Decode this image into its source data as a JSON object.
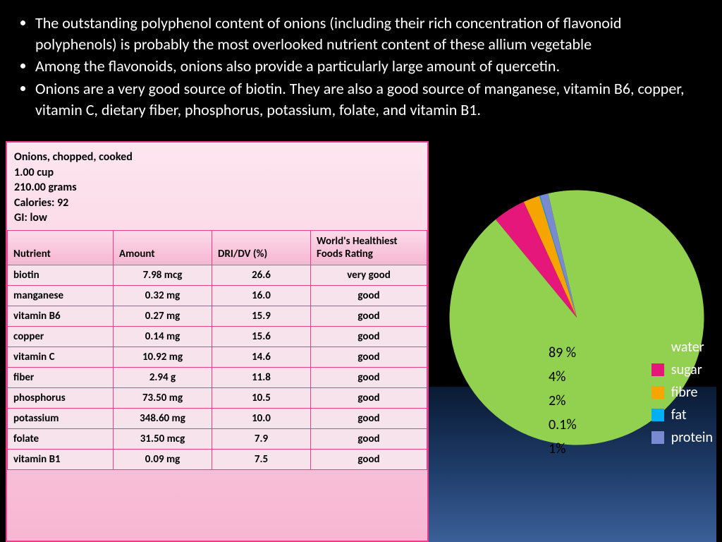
{
  "bullets": [
    "The outstanding polyphenol content of onions (including their rich concentration of flavonoid polyphenols) is probably the most overlooked nutrient content of these allium vegetable",
    " Among the flavonoids, onions also provide a particularly large amount of quercetin.",
    "Onions are a very good source of biotin. They are also a good source of manganese, vitamin B6, copper, vitamin C, dietary fiber, phosphorus, potassium, folate, and vitamin B1."
  ],
  "table": {
    "header_lines": [
      "Onions, chopped, cooked",
      "1.00 cup",
      "210.00 grams",
      "Calories: 92",
      "GI: low"
    ],
    "columns": [
      "Nutrient",
      "Amount",
      "DRI/DV (%)",
      "World's Healthiest Foods Rating"
    ],
    "rows": [
      [
        "biotin",
        "7.98 mcg",
        "26.6",
        "very good"
      ],
      [
        "manganese",
        "0.32 mg",
        "16.0",
        "good"
      ],
      [
        "vitamin B6",
        "0.27 mg",
        "15.9",
        "good"
      ],
      [
        "copper",
        "0.14 mg",
        "15.6",
        "good"
      ],
      [
        "vitamin C",
        "10.92 mg",
        "14.6",
        "good"
      ],
      [
        "fiber",
        "2.94 g",
        "11.8",
        "good"
      ],
      [
        "phosphorus",
        "73.50 mg",
        "10.5",
        "good"
      ],
      [
        "potassium",
        "348.60 mg",
        "10.0",
        "good"
      ],
      [
        "folate",
        "31.50 mcg",
        "7.9",
        "good"
      ],
      [
        "vitamin B1",
        "0.09 mg",
        "7.5",
        "good"
      ]
    ],
    "border_color": "#e83f8c",
    "bg_gradient_top": "#fde6ef",
    "bg_gradient_bottom": "#f7b6d2",
    "font_size": 15
  },
  "pie": {
    "type": "pie",
    "slices": [
      {
        "label": "water",
        "value": 89,
        "color": "#92d050",
        "pct_text": "89 %"
      },
      {
        "label": "sugar",
        "value": 4,
        "color": "#e6177a",
        "pct_text": "4%"
      },
      {
        "label": "fibre",
        "value": 2,
        "color": "#f6a500",
        "pct_text": "2%"
      },
      {
        "label": "fat",
        "value": 0.1,
        "color": "#00b0f0",
        "pct_text": "0.1%"
      },
      {
        "label": "protein",
        "value": 1,
        "color": "#7a8ad1",
        "pct_text": "1%"
      }
    ],
    "start_angle_deg": 257,
    "legend_fontsize": 20,
    "label_fontsize": 20,
    "background": "#000000"
  }
}
